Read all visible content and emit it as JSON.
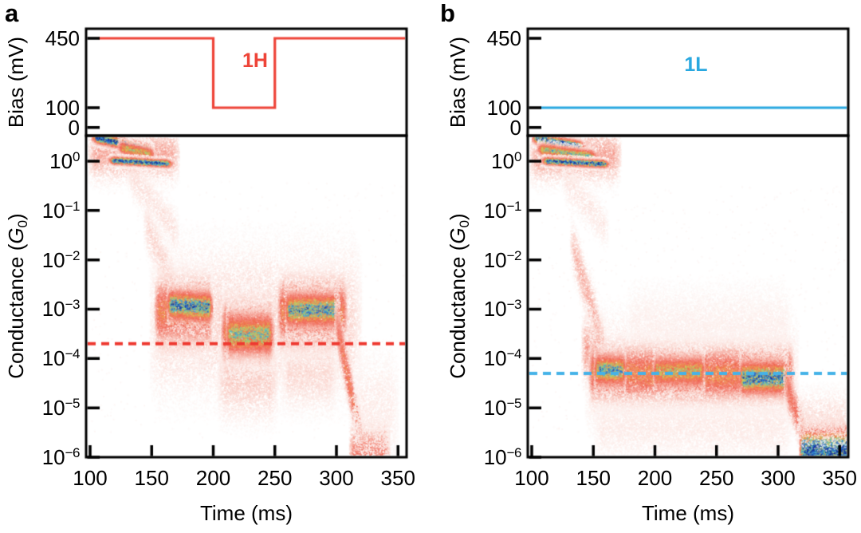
{
  "colors": {
    "axis": "#000000",
    "background": "#ffffff",
    "panel_a_accent": "#ee4438",
    "panel_b_accent": "#29a8e0",
    "dashed_red": "#ee3a31",
    "dashed_blue": "#45b2e8",
    "heat_colormap_low_to_high": [
      "#ffffff",
      "#fdeae6",
      "#f9c1b7",
      "#f4897a",
      "#f05f50",
      "#f1984d",
      "#d6d35c",
      "#86d686",
      "#50c4d0",
      "#2e74d6",
      "#12319c"
    ]
  },
  "chart_data": [
    {
      "panel": "a",
      "type": "heatmap",
      "x": {
        "label": "Time (ms)",
        "ticks": [
          100,
          150,
          200,
          250,
          300,
          350
        ],
        "range_ms": [
          96.8,
          357.5
        ]
      },
      "bias_subplot": {
        "ylabel": "Bias (mV)",
        "yticks": [
          450,
          100,
          0
        ],
        "yrange_mV": [
          -55,
          500
        ],
        "trace_label": "1H",
        "trace_color": "#ee4438",
        "trace_mV": [
          [
            107,
            450
          ],
          [
            200,
            450
          ],
          [
            200,
            100
          ],
          [
            250,
            100
          ],
          [
            250,
            450
          ],
          [
            357,
            450
          ]
        ]
      },
      "conductance_subplot": {
        "ylabel": {
          "pre": "Conductance (",
          "symbol": "G",
          "sub": "0",
          "post": ")"
        },
        "ytick_exponents": [
          0,
          -1,
          -2,
          -3,
          -4,
          -5,
          -6
        ],
        "ylog_range": [
          -6,
          0.52
        ],
        "threshold_line": {
          "value_G0": "2e-4",
          "logG": -3.7,
          "color": "#ee3a31",
          "style": "dashed"
        },
        "density_regions": [
          {
            "shape": "band",
            "t": [
              98,
              172
            ],
            "logG": [
              0.15,
              0.15
            ],
            "sigma": 0.33,
            "peak": 0.3,
            "fade": 6,
            "desc": "contact plateau halo"
          },
          {
            "shape": "band",
            "t": [
              148,
              320
            ],
            "logG": [
              -3.25,
              -3.25
            ],
            "sigma": 0.95,
            "peak": 0.16,
            "fade": 8,
            "desc": "diffuse cloud halo"
          },
          {
            "shape": "band",
            "t": [
              203,
              252
            ],
            "logG": [
              -4.4,
              -4.4
            ],
            "sigma": 0.55,
            "peak": 0.18,
            "fade": 6,
            "desc": "under-cloud wisps"
          },
          {
            "shape": "band",
            "t": [
              255,
              300
            ],
            "logG": [
              -4.3,
              -4.3
            ],
            "sigma": 0.5,
            "peak": 0.14,
            "fade": 6,
            "desc": "under-cloud wisps"
          },
          {
            "shape": "fall",
            "t": [
              130,
              172
            ],
            "logG": [
              -0.2,
              -1.5
            ],
            "sigma": 0.3,
            "peak": 0.12,
            "desc": "breaking wisp"
          },
          {
            "shape": "fall",
            "t": [
              143,
              170
            ],
            "logG": [
              -1.2,
              -2.6
            ],
            "sigma": 0.35,
            "peak": 0.16,
            "desc": "breaking wisp"
          },
          {
            "shape": "fall",
            "t": [
              101,
              150
            ],
            "logG": [
              0.5,
              0.24
            ],
            "sigma": 0.07,
            "peak": 1.12,
            "desc": "upper Au plateau streak"
          },
          {
            "shape": "fall",
            "t": [
              122,
              152
            ],
            "logG": [
              0.3,
              0.14
            ],
            "sigma": 0.09,
            "peak": 0.75,
            "desc": "middle plateau streak"
          },
          {
            "shape": "fall",
            "t": [
              115,
              166
            ],
            "logG": [
              0.03,
              -0.04
            ],
            "sigma": 0.05,
            "peak": 1.12,
            "desc": "1 G0 plateau streak"
          },
          {
            "shape": "band",
            "t": [
              152,
              199
            ],
            "logG": [
              -3.05,
              -3.05
            ],
            "sigma": 0.42,
            "peak": 0.6,
            "fade": 3,
            "desc": "molecular cloud 450 mV segment 1"
          },
          {
            "shape": "band",
            "t": [
              162,
              199
            ],
            "logG": [
              -2.9,
              -2.95
            ],
            "sigma": 0.2,
            "peak": 1.0,
            "fade": 3,
            "desc": "dense core segment 1"
          },
          {
            "shape": "band",
            "t": [
              206,
              249
            ],
            "logG": [
              -3.45,
              -3.45
            ],
            "sigma": 0.38,
            "peak": 0.62,
            "fade": 3,
            "desc": "molecular cloud 100 mV segment"
          },
          {
            "shape": "band",
            "t": [
              210,
              248
            ],
            "logG": [
              -3.5,
              -3.5
            ],
            "sigma": 0.27,
            "peak": 0.85,
            "fade": 3,
            "desc": "core 100 mV segment"
          },
          {
            "shape": "band",
            "t": [
              252,
              308
            ],
            "logG": [
              -3.05,
              -3.05
            ],
            "sigma": 0.42,
            "peak": 0.6,
            "fade": 3,
            "desc": "molecular cloud 450 mV segment 2"
          },
          {
            "shape": "band",
            "t": [
              258,
              302
            ],
            "logG": [
              -3.0,
              -3.0
            ],
            "sigma": 0.22,
            "peak": 0.95,
            "fade": 3,
            "desc": "dense core segment 2"
          },
          {
            "shape": "fall",
            "t": [
              298,
              322
            ],
            "logG": [
              -3.1,
              -5.9
            ],
            "sigma": 0.3,
            "peak": 0.55,
            "desc": "junction rupture tail"
          },
          {
            "shape": "band",
            "t": [
              310,
              343
            ],
            "logG": [
              -5.9,
              -5.9
            ],
            "sigma": 0.35,
            "peak": 0.45,
            "desc": "noise floor smear"
          },
          {
            "shape": "band",
            "t": [
              313,
              350
            ],
            "logG": [
              -5.0,
              -5.0
            ],
            "sigma": 0.8,
            "peak": 0.08,
            "fade": 6,
            "desc": "faint tail halo"
          },
          {
            "shape": "uniform",
            "t": [
              100,
              355
            ],
            "logG": [
              -0.4,
              -5.6
            ],
            "sigma": 0,
            "peak": 0.06,
            "n": 520,
            "desc": "sparse noise"
          }
        ]
      }
    },
    {
      "panel": "b",
      "type": "heatmap",
      "x": {
        "label": "Time (ms)",
        "ticks": [
          100,
          150,
          200,
          250,
          300,
          350
        ],
        "range_ms": [
          98.4,
          357.0
        ]
      },
      "bias_subplot": {
        "ylabel": "Bias (mV)",
        "yticks": [
          450,
          100,
          0
        ],
        "yrange_mV": [
          -55,
          500
        ],
        "trace_label": "1L",
        "trace_color": "#29a8e0",
        "trace_mV": [
          [
            107,
            100
          ],
          [
            357,
            100
          ]
        ]
      },
      "conductance_subplot": {
        "ylabel": {
          "pre": "Conductance (",
          "symbol": "G",
          "sub": "0",
          "post": ")"
        },
        "ytick_exponents": [
          0,
          -1,
          -2,
          -3,
          -4,
          -5,
          -6
        ],
        "ylog_range": [
          -6,
          0.52
        ],
        "threshold_line": {
          "value_G0": "5e-5",
          "logG": -4.3,
          "color": "#45b2e8",
          "style": "dashed"
        },
        "density_regions": [
          {
            "shape": "band",
            "t": [
              98,
              172
            ],
            "logG": [
              0.12,
              0.12
            ],
            "sigma": 0.33,
            "peak": 0.32,
            "fade": 6,
            "desc": "contact plateau halo"
          },
          {
            "shape": "band",
            "t": [
              143,
              316
            ],
            "logG": [
              -4.3,
              -4.3
            ],
            "sigma": 0.75,
            "peak": 0.15,
            "fade": 8,
            "desc": "band halo"
          },
          {
            "shape": "band",
            "t": [
              176,
              310
            ],
            "logG": [
              -3.3,
              -3.3
            ],
            "sigma": 0.6,
            "peak": 0.06,
            "fade": 6,
            "desc": "sparse upper wisps"
          },
          {
            "shape": "band",
            "t": [
              150,
              310
            ],
            "logG": [
              -5.4,
              -5.4
            ],
            "sigma": 0.45,
            "peak": 0.08,
            "fade": 6,
            "desc": "under-band wisps"
          },
          {
            "shape": "fall",
            "t": [
              124,
              162
            ],
            "logG": [
              -0.3,
              -1.4
            ],
            "sigma": 0.28,
            "peak": 0.1,
            "desc": "breaking wisp"
          },
          {
            "shape": "fall",
            "t": [
              131,
              158
            ],
            "logG": [
              -1.6,
              -3.7
            ],
            "sigma": 0.32,
            "peak": 0.28,
            "desc": "drop into molecular band"
          },
          {
            "shape": "band",
            "t": [
              140,
              160
            ],
            "logG": [
              -3.8,
              -3.9
            ],
            "sigma": 0.4,
            "peak": 0.33,
            "fade": 3,
            "desc": "band left shoulder"
          },
          {
            "shape": "fall",
            "t": [
              100,
              142
            ],
            "logG": [
              0.48,
              0.3
            ],
            "sigma": 0.07,
            "peak": 1.12,
            "desc": "upper Au plateau streak"
          },
          {
            "shape": "fall",
            "t": [
              104,
              152
            ],
            "logG": [
              0.26,
              0.1
            ],
            "sigma": 0.08,
            "peak": 0.85,
            "desc": "middle plateau streak"
          },
          {
            "shape": "fall",
            "t": [
              108,
              162
            ],
            "logG": [
              0.02,
              -0.05
            ],
            "sigma": 0.05,
            "peak": 1.12,
            "desc": "1 G0 plateau streak"
          },
          {
            "shape": "band",
            "t": [
              146,
              312
            ],
            "logG": [
              -4.28,
              -4.32
            ],
            "sigma": 0.34,
            "peak": 0.62,
            "fade": 3,
            "desc": "100 mV molecular band"
          },
          {
            "shape": "band",
            "t": [
              150,
              176
            ],
            "logG": [
              -4.22,
              -4.22
            ],
            "sigma": 0.2,
            "peak": 0.92,
            "fade": 3,
            "desc": "dense core left"
          },
          {
            "shape": "band",
            "t": [
              198,
              240
            ],
            "logG": [
              -4.25,
              -4.25
            ],
            "sigma": 0.2,
            "peak": 0.78,
            "fade": 3,
            "desc": "core middle"
          },
          {
            "shape": "band",
            "t": [
              268,
              308
            ],
            "logG": [
              -4.38,
              -4.38
            ],
            "sigma": 0.22,
            "peak": 1.0,
            "fade": 3,
            "desc": "densest core right"
          },
          {
            "shape": "fall",
            "t": [
              304,
              322
            ],
            "logG": [
              -4.4,
              -5.6
            ],
            "sigma": 0.28,
            "peak": 0.5,
            "desc": "rupture drop"
          },
          {
            "shape": "band",
            "t": [
              317,
              357
            ],
            "logG": [
              -5.85,
              -5.85
            ],
            "sigma": 0.3,
            "peak": 1.1,
            "fade": 2,
            "desc": "noise-floor block"
          },
          {
            "shape": "band",
            "t": [
              315,
              357
            ],
            "logG": [
              -5.15,
              -5.15
            ],
            "sigma": 0.35,
            "peak": 0.12,
            "fade": 4,
            "desc": "noise-floor halo"
          },
          {
            "shape": "uniform",
            "t": [
              100,
              357
            ],
            "logG": [
              -0.5,
              -5.6
            ],
            "sigma": 0,
            "peak": 0.06,
            "n": 650,
            "desc": "sparse noise"
          }
        ]
      }
    }
  ]
}
